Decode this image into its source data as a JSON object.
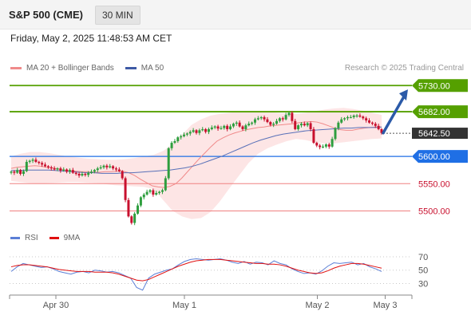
{
  "header": {
    "instrument": "S&P 500 (CME)",
    "timeframe": "30 MIN",
    "datetime": "Friday, May 2, 2025 11:48:53 AM CET"
  },
  "legend": {
    "ma20_label": "MA 20 + Bollinger Bands",
    "ma50_label": "MA 50",
    "credit": "Research © 2025 Trading Central"
  },
  "rsi_legend": {
    "rsi_label": "RSI",
    "ma_label": "9MA"
  },
  "colors": {
    "bull": "#2e9e3e",
    "bear": "#c8102e",
    "resistance": "#55a000",
    "pivot": "#1f6fe5",
    "support": "#f08080",
    "current": "#333333",
    "bollinger": "#fde0e0",
    "ma20": "#f08a8a",
    "ma50": "#5870b8",
    "rsi": "#5b7fd6",
    "rsi_ma": "#e01010",
    "arrow": "#2b5aa8"
  },
  "chart_data": [
    {
      "type": "candlestick",
      "title": "S&P 500 (CME)",
      "ylim": [
        5470,
        5745
      ],
      "x_ticks": [
        {
          "label": "Apr 30",
          "pos": 0.116
        },
        {
          "label": "May 1",
          "pos": 0.438
        },
        {
          "label": "May 2",
          "pos": 0.771
        },
        {
          "label": "May 3",
          "pos": 0.941
        }
      ],
      "levels": [
        {
          "value": 5730.0,
          "label": "5730.00",
          "kind": "resistance"
        },
        {
          "value": 5682.0,
          "label": "5682.00",
          "kind": "resistance"
        },
        {
          "value": 5642.5,
          "label": "5642.50",
          "kind": "current"
        },
        {
          "value": 5600.0,
          "label": "5600.00",
          "kind": "pivot"
        },
        {
          "value": 5550.0,
          "label": "5550.00",
          "kind": "support"
        },
        {
          "value": 5500.0,
          "label": "5500.00",
          "kind": "support"
        }
      ],
      "arrow": {
        "from": 5643,
        "to": 5720
      },
      "prices": [
        5572,
        5570,
        5575,
        5568,
        5573,
        5590,
        5592,
        5594,
        5590,
        5588,
        5585,
        5582,
        5580,
        5578,
        5576,
        5578,
        5574,
        5576,
        5572,
        5575,
        5570,
        5568,
        5565,
        5568,
        5566,
        5570,
        5572,
        5575,
        5578,
        5580,
        5583,
        5580,
        5582,
        5578,
        5576,
        5573,
        5560,
        5520,
        5490,
        5478,
        5495,
        5510,
        5525,
        5530,
        5535,
        5538,
        5530,
        5533,
        5535,
        5538,
        5560,
        5615,
        5625,
        5628,
        5635,
        5637,
        5640,
        5642,
        5645,
        5648,
        5643,
        5648,
        5650,
        5645,
        5650,
        5653,
        5655,
        5651,
        5652,
        5656,
        5650,
        5655,
        5660,
        5662,
        5655,
        5650,
        5657,
        5660,
        5662,
        5668,
        5670,
        5672,
        5668,
        5663,
        5658,
        5660,
        5665,
        5670,
        5668,
        5676,
        5680,
        5665,
        5650,
        5657,
        5660,
        5657,
        5661,
        5650,
        5625,
        5620,
        5617,
        5618,
        5622,
        5618,
        5632,
        5652,
        5662,
        5668,
        5670,
        5672,
        5672,
        5675,
        5675,
        5673,
        5670,
        5666,
        5662,
        5660,
        5656,
        5650,
        5643
      ],
      "ma20": [
        5578,
        5580,
        5581,
        5582,
        5583,
        5582,
        5580,
        5579,
        5577,
        5575,
        5574,
        5573,
        5572,
        5572,
        5571,
        5571,
        5572,
        5572,
        5573,
        5573,
        5570,
        5565,
        5558,
        5552,
        5546,
        5544,
        5543,
        5545,
        5550,
        5560,
        5572,
        5584,
        5596,
        5607,
        5618,
        5628,
        5634,
        5639,
        5643,
        5646,
        5649,
        5651,
        5653,
        5654,
        5656,
        5657,
        5658,
        5659,
        5660,
        5662,
        5663,
        5664,
        5663,
        5660,
        5656,
        5652,
        5649,
        5648,
        5648,
        5650,
        5652,
        5653,
        5654,
        5654
      ],
      "ma50": [
        5574,
        5574,
        5575,
        5575,
        5575,
        5575,
        5574,
        5573,
        5572,
        5571,
        5570,
        5570,
        5569,
        5569,
        5569,
        5570,
        5570,
        5571,
        5572,
        5573,
        5574,
        5575,
        5577,
        5579,
        5582,
        5586,
        5591,
        5596,
        5601,
        5607,
        5613,
        5619,
        5625,
        5630,
        5634,
        5638,
        5641,
        5643,
        5645,
        5647,
        5648,
        5649,
        5650,
        5651,
        5652,
        5652,
        5653,
        5653,
        5653,
        5654
      ],
      "bb_upper": [
        5600,
        5605,
        5608,
        5608,
        5606,
        5603,
        5600,
        5598,
        5596,
        5595,
        5594,
        5594,
        5595,
        5597,
        5600,
        5603,
        5610,
        5622,
        5640,
        5658,
        5668,
        5675,
        5678,
        5680,
        5682,
        5683,
        5683,
        5682,
        5680,
        5679,
        5678,
        5680,
        5683,
        5686,
        5688,
        5689,
        5687,
        5684,
        5680,
        5676
      ],
      "bb_lower": [
        5555,
        5553,
        5551,
        5550,
        5551,
        5552,
        5553,
        5553,
        5552,
        5551,
        5549,
        5547,
        5546,
        5545,
        5544,
        5540,
        5520,
        5500,
        5490,
        5485,
        5487,
        5498,
        5518,
        5542,
        5565,
        5588,
        5605,
        5615,
        5622,
        5628,
        5632,
        5630,
        5626,
        5624,
        5624,
        5626,
        5628,
        5630,
        5632,
        5633
      ]
    },
    {
      "type": "line",
      "title": "RSI",
      "ylim": [
        15,
        82
      ],
      "y_ticks": [
        70,
        50,
        30
      ],
      "series": [
        {
          "name": "RSI",
          "values": [
            48,
            55,
            60,
            58,
            56,
            54,
            55,
            52,
            48,
            46,
            44,
            47,
            48,
            46,
            50,
            49,
            47,
            48,
            46,
            42,
            38,
            24,
            20,
            38,
            44,
            47,
            50,
            52,
            58,
            63,
            66,
            67,
            66,
            65,
            66,
            67,
            65,
            62,
            60,
            63,
            59,
            62,
            61,
            58,
            64,
            60,
            58,
            52,
            48,
            45,
            46,
            44,
            49,
            56,
            61,
            60,
            61,
            62,
            58,
            60,
            55,
            52,
            48
          ]
        },
        {
          "name": "9MA",
          "values": [
            55,
            57,
            58,
            58,
            57,
            56,
            55,
            53,
            51,
            50,
            49,
            48,
            48,
            48,
            47,
            47,
            47,
            46,
            44,
            41,
            38,
            35,
            34,
            36,
            40,
            44,
            48,
            52,
            56,
            59,
            62,
            64,
            65,
            66,
            66,
            66,
            65,
            64,
            63,
            62,
            61,
            60,
            60,
            59,
            59,
            58,
            56,
            53,
            50,
            48,
            46,
            45,
            46,
            49,
            53,
            56,
            58,
            60,
            60,
            59,
            57,
            55,
            53
          ]
        }
      ]
    }
  ]
}
